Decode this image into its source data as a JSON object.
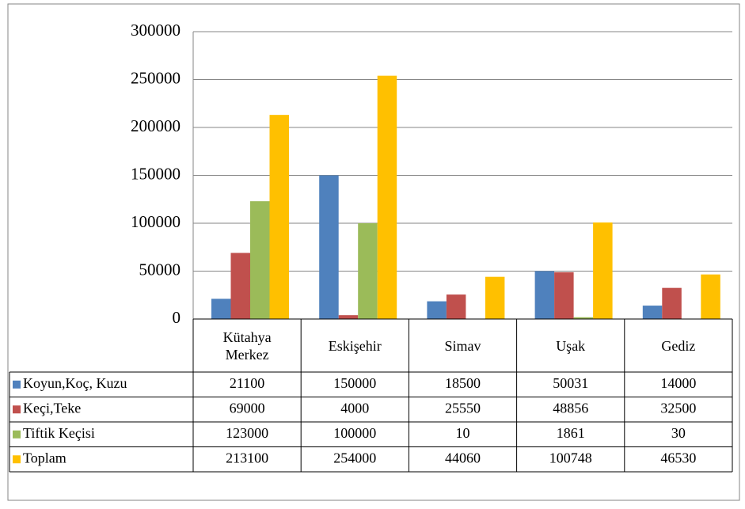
{
  "chart_data": {
    "type": "bar",
    "categories": [
      "Kütahya Merkez",
      "Eskişehir",
      "Simav",
      "Uşak",
      "Gediz"
    ],
    "series": [
      {
        "name": "Koyun,Koç, Kuzu",
        "color": "#4f81bd",
        "values": [
          21100,
          150000,
          18500,
          50031,
          14000
        ]
      },
      {
        "name": "Keçi,Teke",
        "color": "#c0504d",
        "values": [
          69000,
          4000,
          25550,
          48856,
          32500
        ]
      },
      {
        "name": "Tiftik Keçisi",
        "color": "#9bbb59",
        "values": [
          123000,
          100000,
          10,
          1861,
          30
        ]
      },
      {
        "name": "Toplam",
        "color": "#ffc000",
        "values": [
          213100,
          254000,
          44060,
          100748,
          46530
        ]
      }
    ],
    "ylim": [
      0,
      300000
    ],
    "yticks": [
      0,
      50000,
      100000,
      150000,
      200000,
      250000,
      300000
    ],
    "grid": true
  }
}
